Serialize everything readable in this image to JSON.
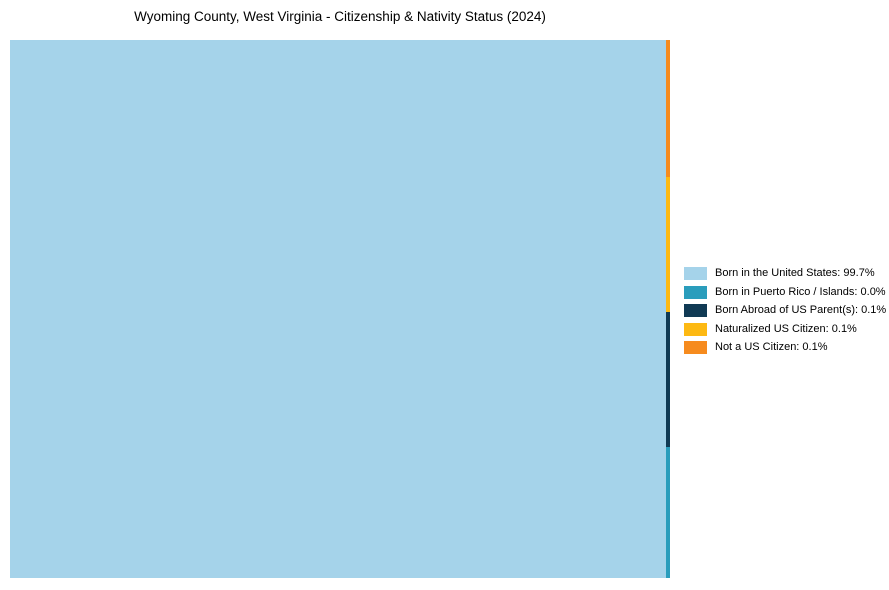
{
  "title": "Wyoming County, West Virginia - Citizenship & Nativity Status (2024)",
  "chart_data": {
    "type": "treemap",
    "title": "Wyoming County, West Virginia - Citizenship & Nativity Status (2024)",
    "unit": "%",
    "categories": [
      "Born in the United States",
      "Born in Puerto Rico / Islands",
      "Born Abroad of US Parent(s)",
      "Naturalized US Citizen",
      "Not a US Citizen"
    ],
    "values": [
      99.7,
      0.0,
      0.1,
      0.1,
      0.1
    ],
    "colors": [
      "#a5d3ea",
      "#2a9dbc",
      "#103a54",
      "#fdb913",
      "#f68b1e"
    ],
    "legend_position": "right",
    "legend": [
      {
        "label": "Born in the United States: 99.7%",
        "color": "#a5d3ea"
      },
      {
        "label": "Born in Puerto Rico / Islands: 0.0%",
        "color": "#2a9dbc"
      },
      {
        "label": "Born Abroad of US Parent(s): 0.1%",
        "color": "#103a54"
      },
      {
        "label": "Naturalized US Citizen: 0.1%",
        "color": "#fdb913"
      },
      {
        "label": "Not a US Citizen: 0.1%",
        "color": "#f68b1e"
      }
    ],
    "layout": {
      "main_block_category": "Born in the United States",
      "right_column_order_top_to_bottom": [
        "Not a US Citizen",
        "Naturalized US Citizen",
        "Born Abroad of US Parent(s)",
        "Born in Puerto Rico / Islands"
      ]
    }
  }
}
